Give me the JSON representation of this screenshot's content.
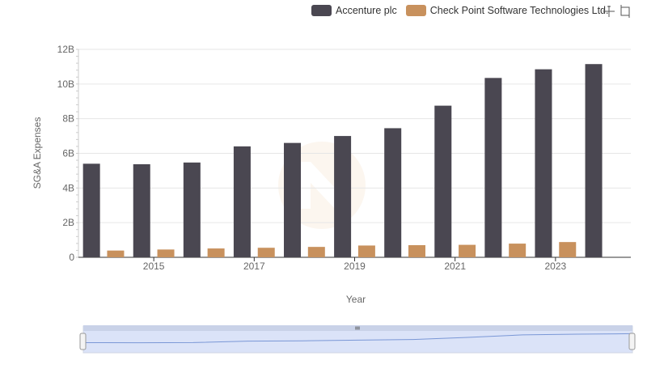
{
  "legend": {
    "items": [
      {
        "label": "Accenture plc",
        "color": "#4a4751"
      },
      {
        "label": "Check Point Software Technologies Ltd.",
        "color": "#c8915d"
      }
    ]
  },
  "toolbar": {
    "icons": [
      "zoom-icon",
      "zoom-reset-icon"
    ]
  },
  "chart_data": {
    "type": "bar",
    "x": [
      2014,
      2015,
      2016,
      2017,
      2018,
      2019,
      2020,
      2021,
      2022,
      2023,
      2024
    ],
    "x_tick_labels": [
      "2015",
      "2017",
      "2019",
      "2021",
      "2023"
    ],
    "xlabel": "Year",
    "ylabel": "SG&A Expenses",
    "ylim": [
      0,
      12000000000
    ],
    "y_tick_values": [
      0,
      2000000000,
      4000000000,
      6000000000,
      8000000000,
      10000000000,
      12000000000
    ],
    "y_tick_labels": [
      "0",
      "2B",
      "4B",
      "6B",
      "8B",
      "10B",
      "12B"
    ],
    "grid": true,
    "legend_position": "top-right",
    "series": [
      {
        "name": "Accenture plc",
        "color": "#4a4751",
        "values": [
          5400000000,
          5370000000,
          5470000000,
          6400000000,
          6600000000,
          7000000000,
          7450000000,
          8750000000,
          10350000000,
          10850000000,
          11150000000
        ]
      },
      {
        "name": "Check Point Software Technologies Ltd.",
        "color": "#c8915d",
        "values": [
          390000000,
          450000000,
          510000000,
          550000000,
          600000000,
          680000000,
          700000000,
          720000000,
          790000000,
          880000000,
          null
        ]
      }
    ]
  },
  "navigator": {
    "range_fraction": [
      0,
      1
    ]
  }
}
